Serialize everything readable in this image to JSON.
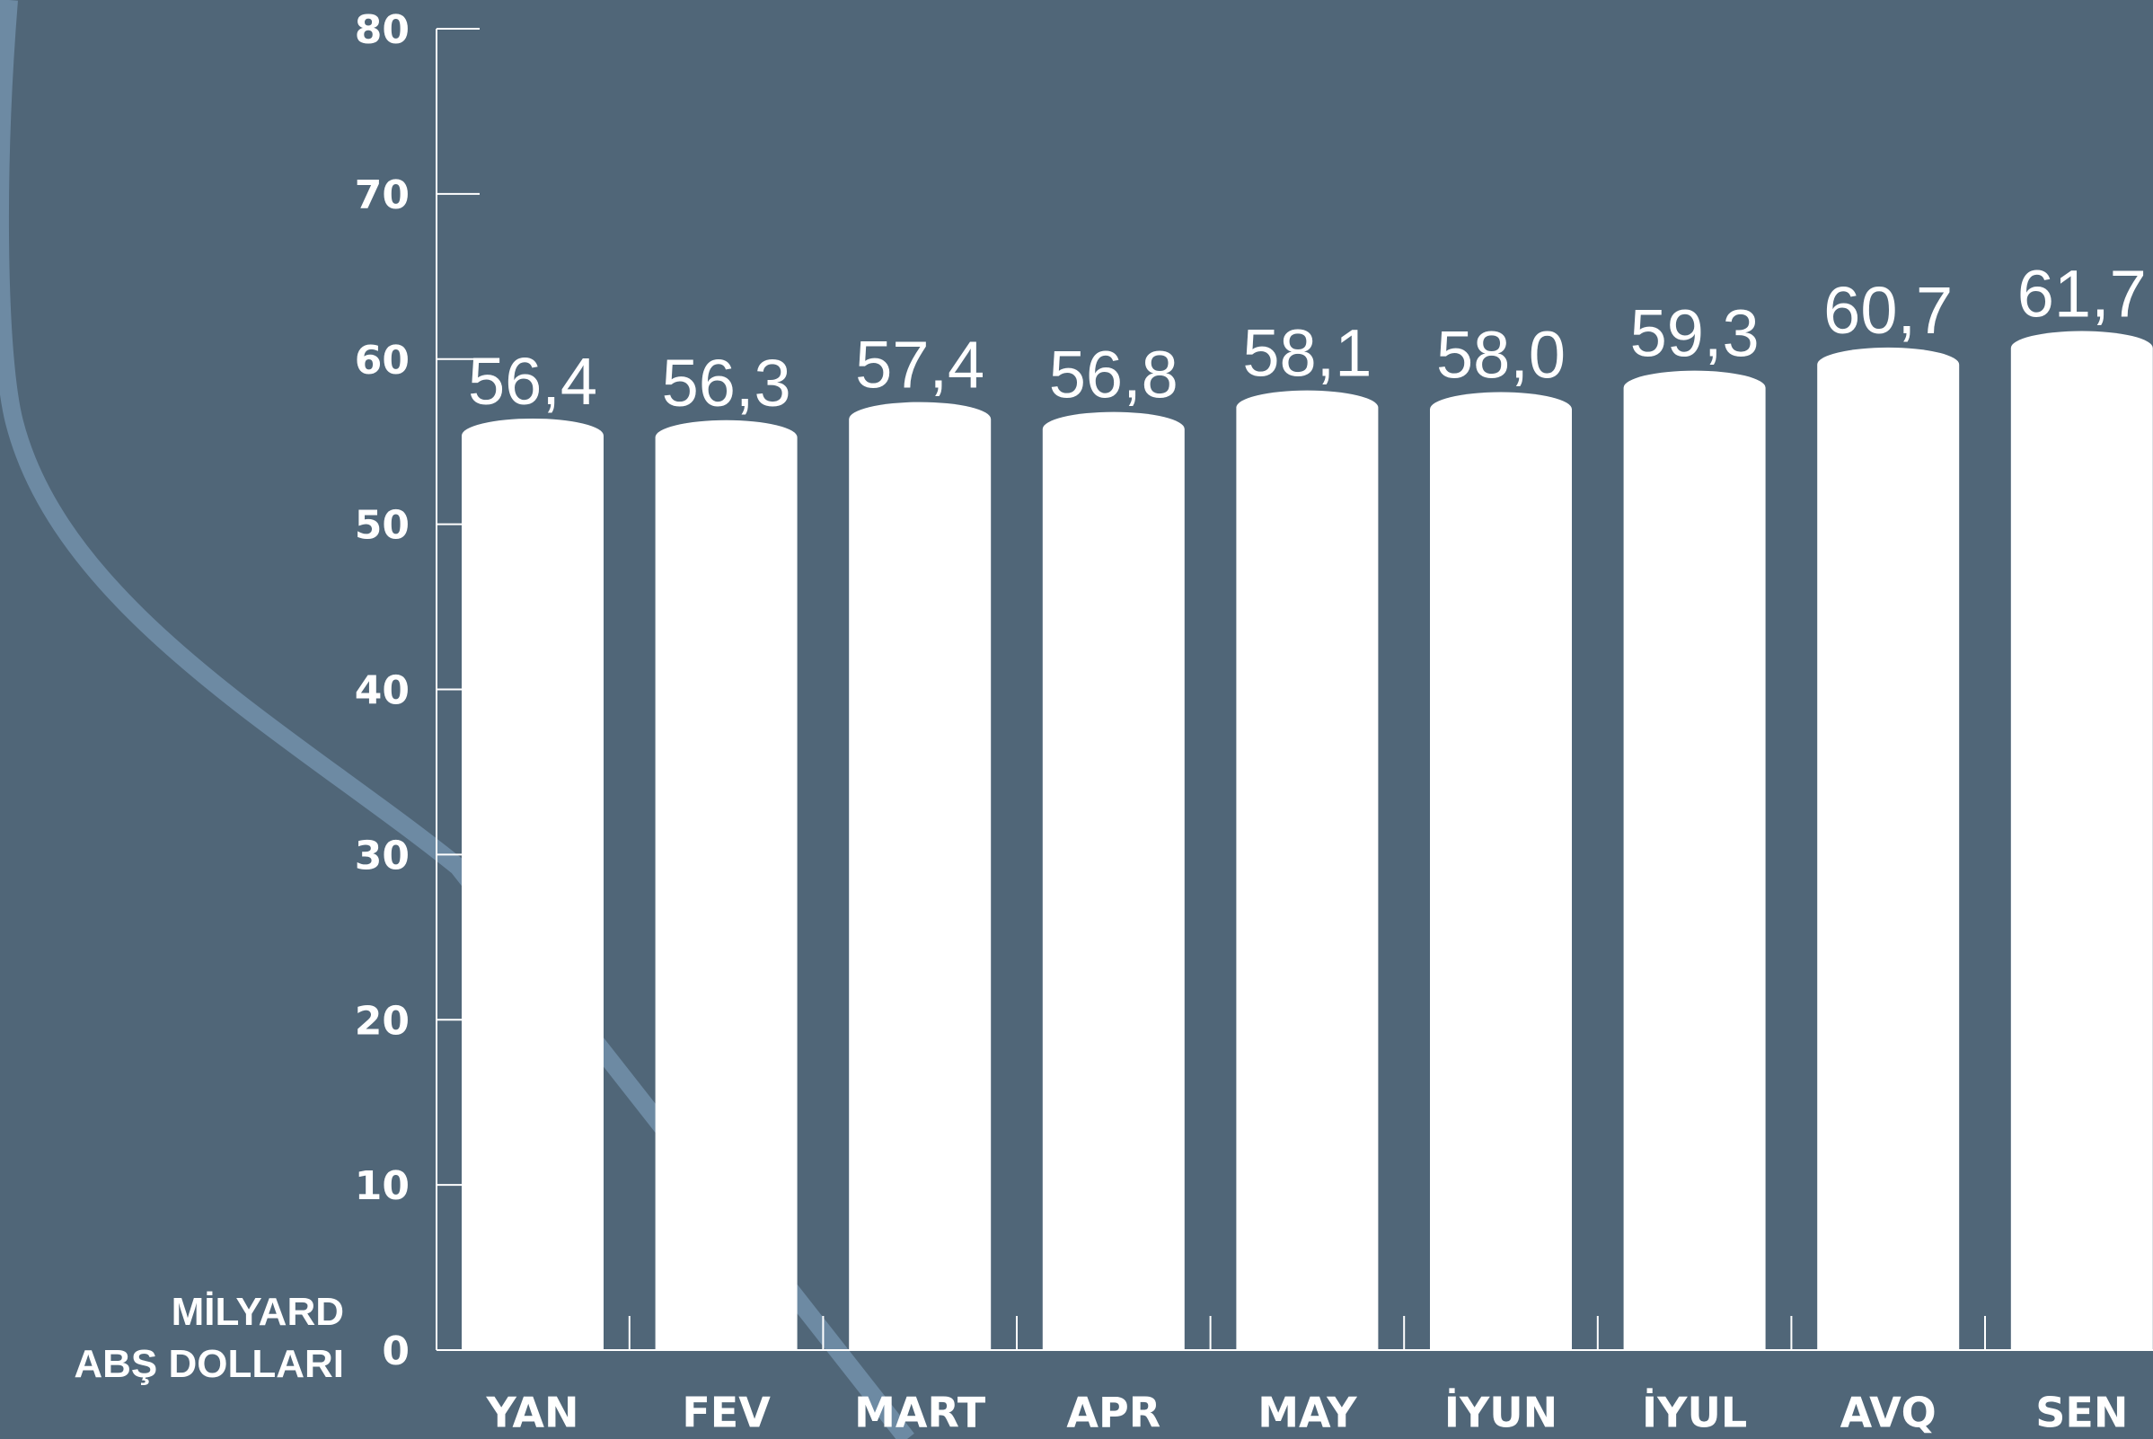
{
  "chart_data": {
    "type": "bar",
    "ylabel": [
      "MİLYARD",
      "ABŞ DOLLARI"
    ],
    "categories": [
      "YAN",
      "FEV",
      "MART",
      "APR",
      "MAY",
      "İYUN",
      "İYUL",
      "AVQ",
      "SEN"
    ],
    "values": [
      56.4,
      56.3,
      57.4,
      56.8,
      58.1,
      58.0,
      59.3,
      60.7,
      61.7
    ],
    "value_labels": [
      "56,4",
      "56,3",
      "57,4",
      "56,8",
      "58,1",
      "58,0",
      "59,3",
      "60,7",
      "61,7"
    ],
    "color": "#ffffff",
    "ylim": [
      0,
      80
    ],
    "yticks": [
      0,
      10,
      20,
      30,
      40,
      50,
      60,
      70,
      80
    ]
  }
}
